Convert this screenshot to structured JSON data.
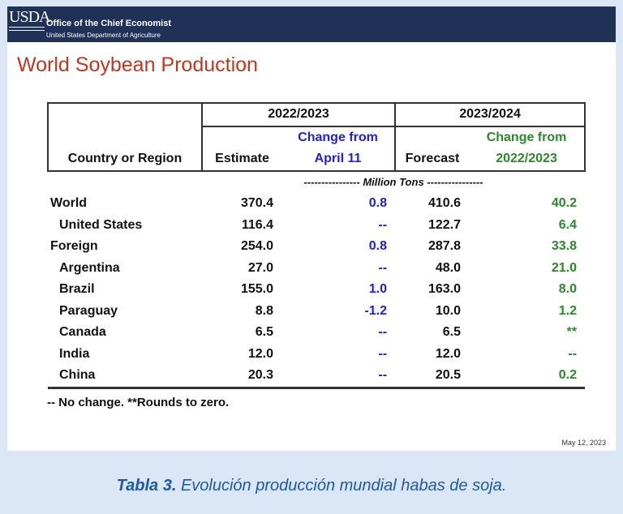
{
  "banner": {
    "logo": "USDA",
    "org": "Office of the Chief Economist",
    "dept": "United States Department of Agriculture"
  },
  "title": "World Soybean Production",
  "table": {
    "group1": "2022/2023",
    "group2": "2023/2024",
    "col_country": "Country or Region",
    "col_estimate": "Estimate",
    "col_change1_line1": "Change from",
    "col_change1_line2": "April 11",
    "col_forecast": "Forecast",
    "col_change2_line1": "Change from",
    "col_change2_line2": "2022/2023",
    "units": "---------------- Million Tons ----------------",
    "rows": [
      {
        "name": "World",
        "estimate": "370.4",
        "change1": "0.8",
        "forecast": "410.6",
        "change2": "40.2"
      },
      {
        "name": "United States",
        "estimate": "116.4",
        "change1": "--",
        "forecast": "122.7",
        "change2": "6.4"
      },
      {
        "name": "Foreign",
        "estimate": "254.0",
        "change1": "0.8",
        "forecast": "287.8",
        "change2": "33.8"
      },
      {
        "name": "Argentina",
        "estimate": "27.0",
        "change1": "--",
        "forecast": "48.0",
        "change2": "21.0"
      },
      {
        "name": "Brazil",
        "estimate": "155.0",
        "change1": "1.0",
        "forecast": "163.0",
        "change2": "8.0"
      },
      {
        "name": "Paraguay",
        "estimate": "8.8",
        "change1": "-1.2",
        "forecast": "10.0",
        "change2": "1.2"
      },
      {
        "name": "Canada",
        "estimate": "6.5",
        "change1": "--",
        "forecast": "6.5",
        "change2": "**"
      },
      {
        "name": "India",
        "estimate": "12.0",
        "change1": "--",
        "forecast": "12.0",
        "change2": "--"
      },
      {
        "name": "China",
        "estimate": "20.3",
        "change1": "--",
        "forecast": "20.5",
        "change2": "0.2"
      }
    ]
  },
  "footnote": "-- No change.  **Rounds to zero.",
  "date": "May 12, 2023",
  "caption": {
    "bold": "Tabla 3.",
    "rest": " Evolución producción mundial habas de soja."
  }
}
